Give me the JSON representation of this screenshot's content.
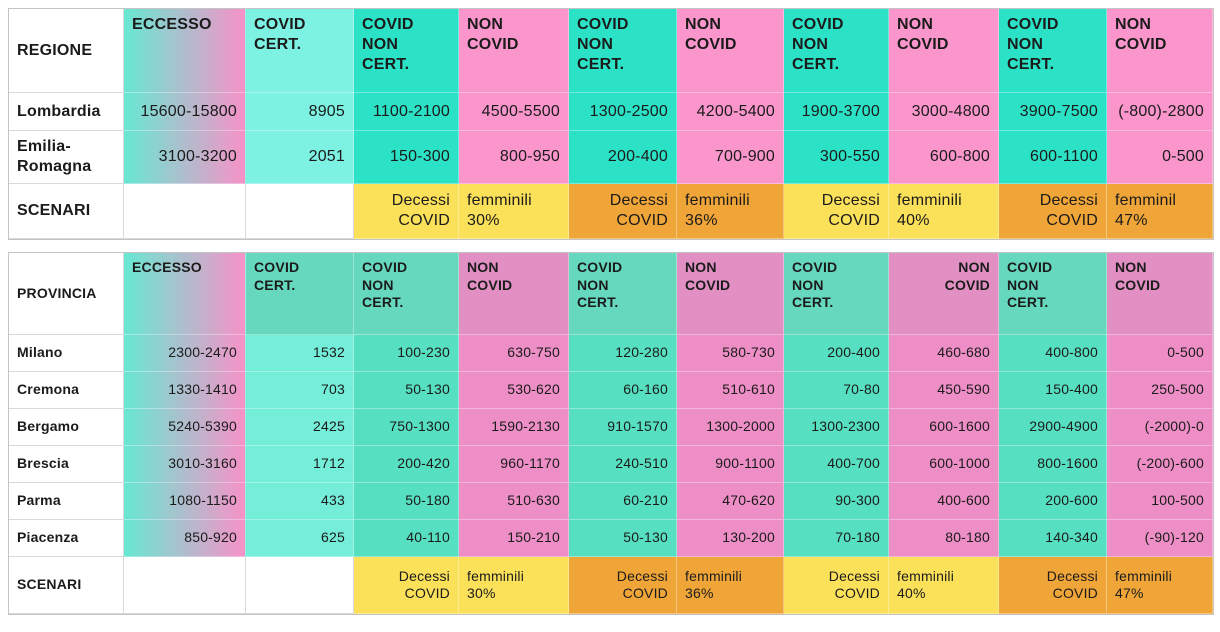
{
  "palette": {
    "page_bg": "#ffffff",
    "text": "#1b1b1b",
    "border_outer": "#c4c4c4",
    "border_inner": "#d9d9d9",
    "yellow": "#fbe05a",
    "orange": "#f0a538",
    "table1": {
      "teal": "#2ce2c6",
      "teal_light": "#7df2e2",
      "pink": "#fa96cb",
      "grad_start": "#67e8d2",
      "grad_end": "#f792c8"
    },
    "table2": {
      "teal": "#56dfc0",
      "teal_header": "#66d8be",
      "teal_light": "#74edd9",
      "pink": "#ee8ec6",
      "pink_header": "#e290c4",
      "grad_start": "#67e8d2",
      "grad_end": "#f792c8"
    }
  },
  "chart_data": [
    {
      "type": "table",
      "name": "regioni",
      "palette_key": "table1",
      "label_header": "REGIONE",
      "scenari_label": "SCENARI",
      "columns": [
        {
          "label": "ECCESSO",
          "kind": "grad"
        },
        {
          "label": "COVID CERT.",
          "kind": "teal_light"
        },
        {
          "label": "COVID NON CERT.",
          "kind": "teal"
        },
        {
          "label": "NON COVID",
          "kind": "pink"
        },
        {
          "label": "COVID NON CERT.",
          "kind": "teal"
        },
        {
          "label": "NON COVID",
          "kind": "pink"
        },
        {
          "label": "COVID NON CERT.",
          "kind": "teal"
        },
        {
          "label": "NON COVID",
          "kind": "pink"
        },
        {
          "label": "COVID NON CERT.",
          "kind": "teal"
        },
        {
          "label": "NON COVID",
          "kind": "pink"
        }
      ],
      "rows": [
        {
          "label": "Lombardia",
          "values": [
            "15600-15800",
            "8905",
            "1100-2100",
            "4500-5500",
            "1300-2500",
            "4200-5400",
            "1900-3700",
            "3000-4800",
            "3900-7500",
            "(-800)-2800"
          ]
        },
        {
          "label": "Emilia-Romagna",
          "values": [
            "3100-3200",
            "2051",
            "150-300",
            "800-950",
            "200-400",
            "700-900",
            "300-550",
            "600-800",
            "600-1100",
            "0-500"
          ]
        }
      ],
      "scenari": [
        {
          "left": "Decessi COVID",
          "right": "femminili 30%",
          "tone": "yellow"
        },
        {
          "left": "Decessi COVID",
          "right": "femminili 36%",
          "tone": "orange"
        },
        {
          "left": "Decessi COVID",
          "right": "femminili 40%",
          "tone": "yellow"
        },
        {
          "left": "Decessi COVID",
          "right": "femminil 47%",
          "tone": "orange"
        }
      ]
    },
    {
      "type": "table",
      "name": "province",
      "palette_key": "table2",
      "label_header": "PROVINCIA",
      "scenari_label": "SCENARI",
      "columns": [
        {
          "label": "ECCESSO",
          "kind": "grad"
        },
        {
          "label": "COVID CERT.",
          "kind": "teal_light",
          "header_kind": "teal_header"
        },
        {
          "label": "COVID NON CERT.",
          "kind": "teal",
          "header_kind": "teal_header"
        },
        {
          "label": "NON COVID",
          "kind": "pink",
          "header_kind": "pink_header"
        },
        {
          "label": "COVID NON CERT.",
          "kind": "teal",
          "header_kind": "teal_header"
        },
        {
          "label": "NON COVID",
          "kind": "pink",
          "header_kind": "pink_header"
        },
        {
          "label": "COVID NON CERT.",
          "kind": "teal",
          "header_kind": "teal_header"
        },
        {
          "label": "NON COVID",
          "kind": "pink",
          "header_kind": "pink_header",
          "header_align": "right"
        },
        {
          "label": "COVID NON CERT.",
          "kind": "teal",
          "header_kind": "teal_header"
        },
        {
          "label": "NON COVID",
          "kind": "pink",
          "header_kind": "pink_header"
        }
      ],
      "rows": [
        {
          "label": "Milano",
          "values": [
            "2300-2470",
            "1532",
            "100-230",
            "630-750",
            "120-280",
            "580-730",
            "200-400",
            "460-680",
            "400-800",
            "0-500"
          ]
        },
        {
          "label": "Cremona",
          "values": [
            "1330-1410",
            "703",
            "50-130",
            "530-620",
            "60-160",
            "510-610",
            "70-80",
            "450-590",
            "150-400",
            "250-500"
          ]
        },
        {
          "label": "Bergamo",
          "values": [
            "5240-5390",
            "2425",
            "750-1300",
            "1590-2130",
            "910-1570",
            "1300-2000",
            "1300-2300",
            "600-1600",
            "2900-4900",
            "(-2000)-0"
          ]
        },
        {
          "label": "Brescia",
          "values": [
            "3010-3160",
            "1712",
            "200-420",
            "960-1170",
            "240-510",
            "900-1100",
            "400-700",
            "600-1000",
            "800-1600",
            "(-200)-600"
          ]
        },
        {
          "label": "Parma",
          "values": [
            "1080-1150",
            "433",
            "50-180",
            "510-630",
            "60-210",
            "470-620",
            "90-300",
            "400-600",
            "200-600",
            "100-500"
          ]
        },
        {
          "label": "Piacenza",
          "values": [
            "850-920",
            "625",
            "40-110",
            "150-210",
            "50-130",
            "130-200",
            "70-180",
            "80-180",
            "140-340",
            "(-90)-120"
          ]
        }
      ],
      "scenari": [
        {
          "left": "Decessi COVID",
          "right": "femminili 30%",
          "tone": "yellow"
        },
        {
          "left": "Decessi COVID",
          "right": "femminili 36%",
          "tone": "orange"
        },
        {
          "left": "Decessi COVID",
          "right": "femminili 40%",
          "tone": "yellow"
        },
        {
          "left": "Decessi COVID",
          "right": "femminili 47%",
          "tone": "orange"
        }
      ]
    }
  ]
}
